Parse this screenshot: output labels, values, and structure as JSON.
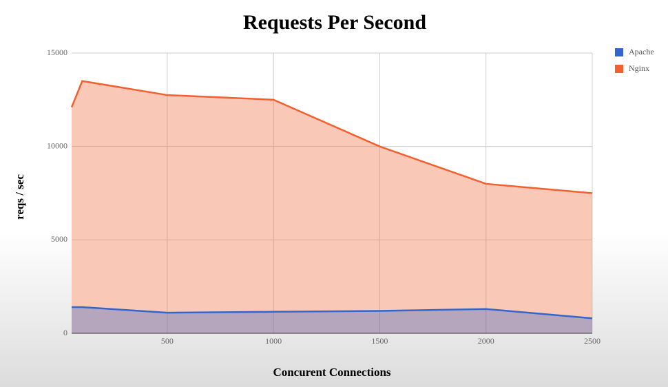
{
  "chart_data": {
    "type": "area",
    "title": "Requests Per Second",
    "x_label": "Concurent Connections",
    "y_label": "reqs / sec",
    "x": [
      50,
      100,
      500,
      1000,
      1500,
      2000,
      2500
    ],
    "series": [
      {
        "name": "Apache",
        "color": "#3366cc",
        "values": [
          1400,
          1400,
          1100,
          1150,
          1200,
          1300,
          800
        ]
      },
      {
        "name": "Nginx",
        "color": "#f2602f",
        "values": [
          12100,
          13500,
          12750,
          12500,
          10000,
          8000,
          7500
        ]
      }
    ],
    "xlim": [
      50,
      2500
    ],
    "xticks": [
      500,
      1000,
      1500,
      2000,
      2500
    ],
    "ylim": [
      0,
      15000
    ],
    "yticks": [
      0,
      5000,
      10000,
      15000
    ],
    "grid": true,
    "legend": "right"
  }
}
